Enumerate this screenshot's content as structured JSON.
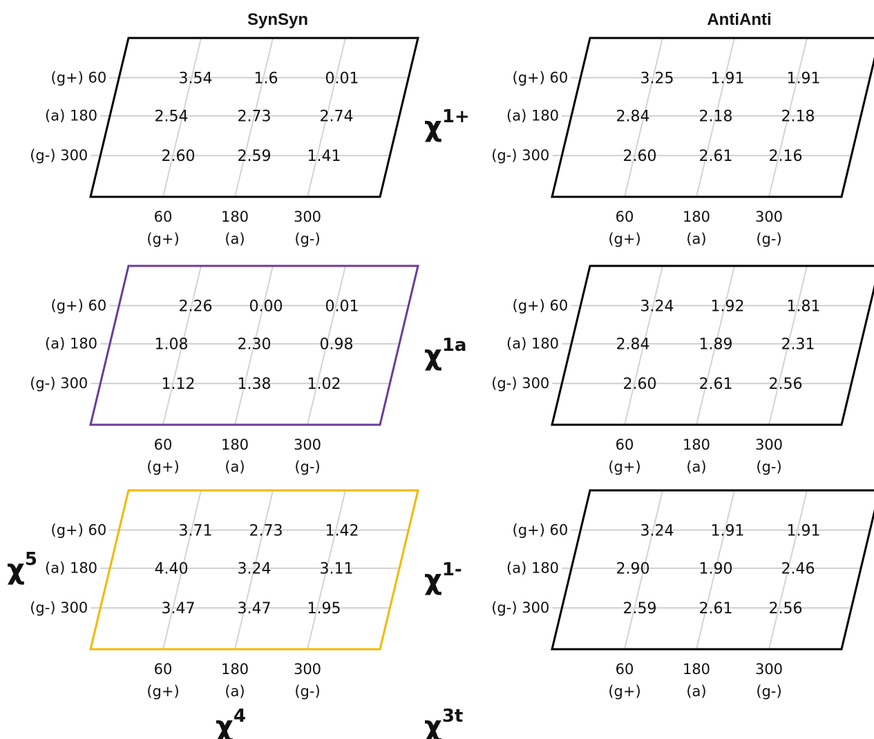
{
  "columns": [
    {
      "title": "SynSyn",
      "panels": [
        {
          "border_color": "#000000",
          "values": [
            [
              "3.54",
              "1.6",
              "0.01"
            ],
            [
              "2.54",
              "2.73",
              "2.74"
            ],
            [
              "2.60",
              "2.59",
              "1.41"
            ]
          ]
        },
        {
          "border_color": "#6a3d9a",
          "values": [
            [
              "2.26",
              "0.00",
              "0.01"
            ],
            [
              "1.08",
              "2.30",
              "0.98"
            ],
            [
              "1.12",
              "1.38",
              "1.02"
            ]
          ]
        },
        {
          "border_color": "#f5b800",
          "values": [
            [
              "3.71",
              "2.73",
              "1.42"
            ],
            [
              "4.40",
              "3.24",
              "3.11"
            ],
            [
              "3.47",
              "3.47",
              "1.95"
            ]
          ]
        }
      ]
    },
    {
      "title": "AntiAnti",
      "panels": [
        {
          "border_color": "#000000",
          "values": [
            [
              "3.25",
              "1.91",
              "1.91"
            ],
            [
              "2.84",
              "2.18",
              "2.18"
            ],
            [
              "2.60",
              "2.61",
              "2.16"
            ]
          ]
        },
        {
          "border_color": "#000000",
          "values": [
            [
              "3.24",
              "1.92",
              "1.81"
            ],
            [
              "2.84",
              "1.89",
              "2.31"
            ],
            [
              "2.60",
              "2.61",
              "2.56"
            ]
          ]
        },
        {
          "border_color": "#000000",
          "values": [
            [
              "3.24",
              "1.91",
              "1.91"
            ],
            [
              "2.90",
              "1.90",
              "2.46"
            ],
            [
              "2.59",
              "2.61",
              "2.56"
            ]
          ]
        }
      ]
    }
  ],
  "row_ticks": [
    "(g+) 60",
    "(a) 180",
    "(g-) 300"
  ],
  "col_ticks": [
    {
      "angle": "60",
      "label": "(g+)"
    },
    {
      "angle": "180",
      "label": "(a)"
    },
    {
      "angle": "300",
      "label": "(g-)"
    }
  ],
  "chi_labels": {
    "chi1plus": {
      "base": "χ",
      "sup": "1+"
    },
    "chi1a": {
      "base": "χ",
      "sup": "1a"
    },
    "chi1minus": {
      "base": "χ",
      "sup": "1-"
    },
    "chi5": {
      "base": "χ",
      "sup": "5"
    },
    "chi4": {
      "base": "χ",
      "sup": "4"
    },
    "chi3t": {
      "base": "χ",
      "sup": "3t"
    }
  }
}
